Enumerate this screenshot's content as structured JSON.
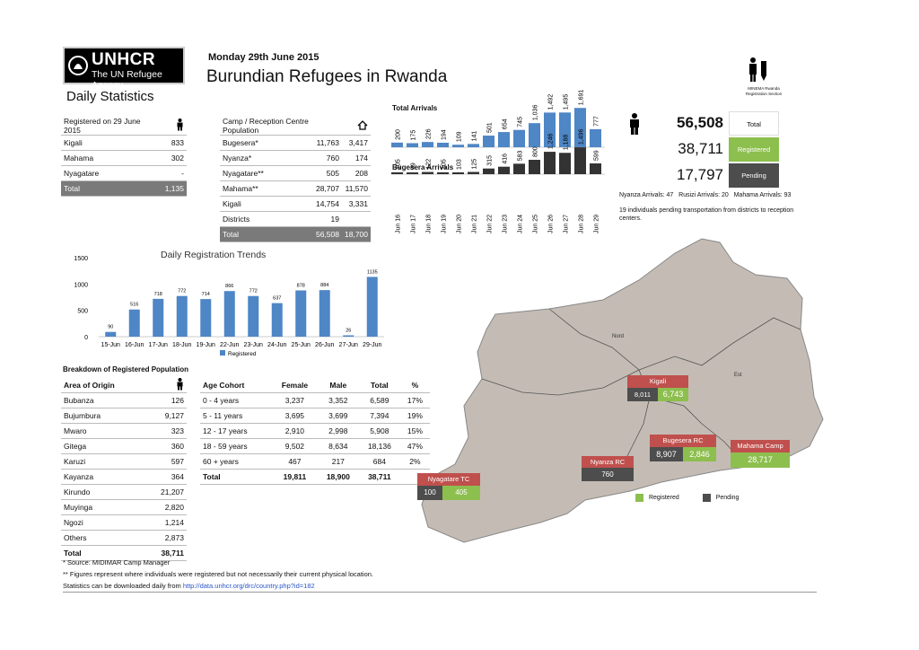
{
  "header": {
    "logo_line1": "UNHCR",
    "logo_line2": "The UN Refugee Agency",
    "date": "Monday 29th June 2015",
    "title": "Burundian Refugees in Rwanda",
    "subtitle": "Daily Statistics",
    "org_caption": "MINEMA Rwanda Registration Section"
  },
  "registered_today": {
    "header": "Registered on 29 June 2015",
    "rows": [
      {
        "place": "Kigali",
        "value": "833"
      },
      {
        "place": "Mahama",
        "value": "302"
      },
      {
        "place": "Nyagatare",
        "value": "-"
      }
    ],
    "total_label": "Total",
    "total_value": "1,135"
  },
  "camp_table": {
    "header": "Camp / Reception Centre Population",
    "rows": [
      {
        "name": "Bugesera*",
        "a": "11,763",
        "b": "3,417"
      },
      {
        "name": "Nyanza*",
        "a": "760",
        "b": "174"
      },
      {
        "name": "Nyagatare**",
        "a": "505",
        "b": "208"
      },
      {
        "name": "Mahama**",
        "a": "28,707",
        "b": "11,570"
      },
      {
        "name": "Kigali",
        "a": "14,754",
        "b": "3,331"
      },
      {
        "name": "Districts",
        "a": "19",
        "b": ""
      }
    ],
    "total_label": "Total",
    "total_a": "56,508",
    "total_b": "18,700"
  },
  "summary": {
    "total_value": "56,508",
    "total_label": "Total",
    "registered_value": "38,711",
    "registered_label": "Registered",
    "pending_value": "17,797",
    "pending_label": "Pending",
    "arrivals_text": "Nyanza Arrivals: 47   Rusizi Arrivals: 20   Mahama Arrivals: 93",
    "pending_note": "19 individuals pending transportation from districts to reception centers.",
    "colors": {
      "total": "#ffffff",
      "registered": "#8dbf4e",
      "pending": "#4d4d4d"
    }
  },
  "chart_data": [
    {
      "type": "bar",
      "title": "Total Arrivals",
      "categories": [
        "Jun 16",
        "Jun 17",
        "Jun 18",
        "Jun 19",
        "Jun 20",
        "Jun 21",
        "Jun 22",
        "Jun 23",
        "Jun 24",
        "Jun 25",
        "Jun 26",
        "Jun 27",
        "Jun 28",
        "Jun 29"
      ],
      "values": [
        200,
        175,
        226,
        194,
        109,
        141,
        501,
        654,
        745,
        1036,
        1492,
        1495,
        1691,
        777
      ],
      "labels": [
        "200",
        "175",
        "226",
        "194",
        "109",
        "141",
        "501",
        "654",
        "745",
        "1,036",
        "1,492",
        "1,495",
        "1,691",
        "777"
      ],
      "color": "#4e86c6"
    },
    {
      "type": "bar",
      "title": "Bugesera Arrivals",
      "categories": [
        "Jun 16",
        "Jun 17",
        "Jun 18",
        "Jun 19",
        "Jun 20",
        "Jun 21",
        "Jun 22",
        "Jun 23",
        "Jun 24",
        "Jun 25",
        "Jun 26",
        "Jun 27",
        "Jun 28",
        "Jun 29"
      ],
      "values": [
        105,
        99,
        122,
        105,
        103,
        125,
        315,
        416,
        583,
        800,
        1246,
        1188,
        1496,
        599
      ],
      "labels": [
        "105",
        "99",
        "122",
        "105",
        "103",
        "125",
        "315",
        "416",
        "583",
        "800",
        "1,246",
        "1,188",
        "1,496",
        "599"
      ],
      "color": "#333333"
    },
    {
      "type": "bar",
      "title": "Daily Registration Trends",
      "categories": [
        "15-Jun",
        "16-Jun",
        "17-Jun",
        "18-Jun",
        "19-Jun",
        "22-Jun",
        "23-Jun",
        "24-Jun",
        "25-Jun",
        "26-Jun",
        "27-Jun",
        "29-Jun"
      ],
      "values": [
        90,
        516,
        718,
        772,
        714,
        866,
        772,
        637,
        878,
        884,
        26,
        1135
      ],
      "yticks": [
        "0",
        "500",
        "1000",
        "1500"
      ],
      "ylim": [
        0,
        1500
      ],
      "legend": "Registered",
      "color": "#4e86c6"
    }
  ],
  "breakdown": {
    "title": "Breakdown of Registered Population",
    "origin_header": "Area of Origin",
    "origin_rows": [
      {
        "name": "Bubanza",
        "value": "126"
      },
      {
        "name": "Bujumbura",
        "value": "9,127"
      },
      {
        "name": "Mwaro",
        "value": "323"
      },
      {
        "name": "Gitega",
        "value": "360"
      },
      {
        "name": "Karuzi",
        "value": "597"
      },
      {
        "name": "Kayanza",
        "value": "364"
      },
      {
        "name": "Kirundo",
        "value": "21,207"
      },
      {
        "name": "Muyinga",
        "value": "2,820"
      },
      {
        "name": "Ngozi",
        "value": "1,214"
      },
      {
        "name": "Others",
        "value": "2,873"
      }
    ],
    "origin_total_label": "Total",
    "origin_total": "38,711",
    "age_headers": [
      "Age Cohort",
      "Female",
      "Male",
      "Total",
      "%"
    ],
    "age_rows": [
      [
        "0 - 4 years",
        "3,237",
        "3,352",
        "6,589",
        "17%"
      ],
      [
        "5 - 11 years",
        "3,695",
        "3,699",
        "7,394",
        "19%"
      ],
      [
        "12 - 17 years",
        "2,910",
        "2,998",
        "5,908",
        "15%"
      ],
      [
        "18 - 59 years",
        "9,502",
        "8,634",
        "18,136",
        "47%"
      ],
      [
        "60 + years",
        "467",
        "217",
        "684",
        "2%"
      ]
    ],
    "age_total": [
      "Total",
      "19,811",
      "18,900",
      "38,711",
      ""
    ]
  },
  "map": {
    "kigali": {
      "name": "Kigali",
      "pending": "8,011",
      "registered": "6,743"
    },
    "bugesera": {
      "name": "Bugesera RC",
      "pending": "8,907",
      "registered": "2,846"
    },
    "mahama": {
      "name": "Mahama Camp",
      "registered": "28,717"
    },
    "nyanza": {
      "name": "Nyanza RC",
      "pending": "760"
    },
    "nyagatare": {
      "name": "Nyagatare TC",
      "pending": "100",
      "registered": "405"
    },
    "legend_registered": "Registered",
    "legend_pending": "Pending",
    "region_north": "Nord",
    "region_east": "Est",
    "colors": {
      "label": "#c0504d",
      "registered": "#8dbf4e",
      "pending": "#4d4d4d",
      "land": "#c4bcb4"
    }
  },
  "notes": {
    "source": "* Source: MIDIMAR Camp Manager",
    "figures": "** Figures represent where individuals were registered but not necessarily their current physical location.",
    "download_prefix": "Statistics can be downloaded daily from ",
    "download_link": "http://data.unhcr.org/drc/country.php?id=182"
  }
}
